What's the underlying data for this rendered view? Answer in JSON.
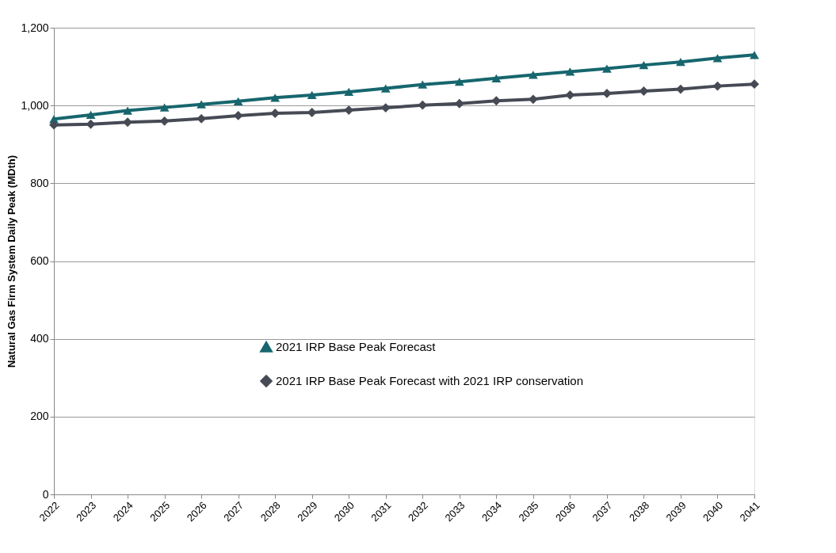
{
  "chart_data": {
    "type": "line",
    "ylabel": "Natural Gas Firm System Daily Peak (MDth)",
    "categories": [
      "2022",
      "2023",
      "2024",
      "2025",
      "2026",
      "2027",
      "2028",
      "2029",
      "2030",
      "2031",
      "2032",
      "2033",
      "2034",
      "2035",
      "2036",
      "2037",
      "2038",
      "2039",
      "2040",
      "2041"
    ],
    "series": [
      {
        "name": "2021 IRP Base Peak Forecast",
        "color": "#17666e",
        "marker": "triangle",
        "values": [
          965,
          976,
          987,
          995,
          1003,
          1011,
          1020,
          1027,
          1035,
          1044,
          1054,
          1061,
          1070,
          1079,
          1087,
          1095,
          1104,
          1112,
          1122,
          1130
        ]
      },
      {
        "name": "2021 IRP Base Peak Forecast with 2021 IRP conservation",
        "color": "#464a54",
        "marker": "diamond",
        "values": [
          950,
          952,
          957,
          960,
          966,
          974,
          980,
          982,
          988,
          994,
          1001,
          1005,
          1012,
          1016,
          1027,
          1031,
          1037,
          1042,
          1050,
          1055
        ]
      }
    ],
    "ylim": [
      0,
      1200
    ],
    "yticks": [
      0,
      200,
      400,
      600,
      800,
      {
        "value": 1000,
        "label": "1,000"
      },
      {
        "value": 1200,
        "label": "1,200"
      }
    ],
    "grid": "y",
    "legend": "bottom",
    "line_style": "solid"
  }
}
